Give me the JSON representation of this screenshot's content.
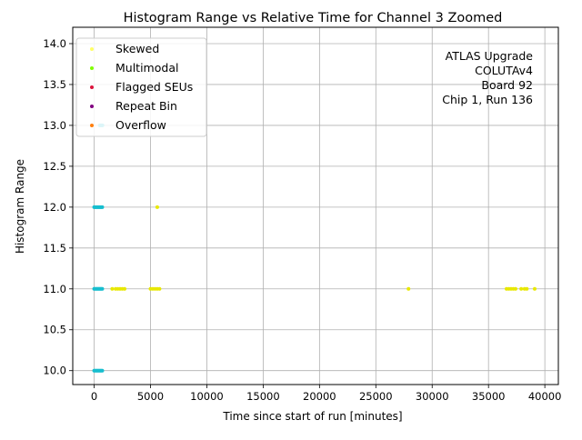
{
  "chart_data": {
    "type": "scatter",
    "title": "Histogram Range vs Relative Time for Channel 3 Zoomed",
    "xlabel": "Time since start of run [minutes]",
    "ylabel": "Histogram Range",
    "xlim": [
      -1900,
      41200
    ],
    "ylim": [
      9.83,
      14.2
    ],
    "x_ticks": [
      0,
      5000,
      10000,
      15000,
      20000,
      25000,
      30000,
      35000,
      40000
    ],
    "x_tick_labels": [
      "0",
      "5000",
      "10000",
      "15000",
      "20000",
      "25000",
      "30000",
      "35000",
      "40000"
    ],
    "y_ticks": [
      10.0,
      10.5,
      11.0,
      11.5,
      12.0,
      12.5,
      13.0,
      13.5,
      14.0
    ],
    "y_tick_labels": [
      "10.0",
      "10.5",
      "11.0",
      "11.5",
      "12.0",
      "12.5",
      "13.0",
      "13.5",
      "14.0"
    ],
    "grid": true,
    "legend_position": "top-left",
    "legend": [
      {
        "label": "Skewed",
        "color": "#ffff66"
      },
      {
        "label": "Multimodal",
        "color": "#7fff00"
      },
      {
        "label": "Flagged SEUs",
        "color": "#dc143c"
      },
      {
        "label": "Repeat Bin",
        "color": "#800080"
      },
      {
        "label": "Overflow",
        "color": "#ff7f0e"
      }
    ],
    "annotation": [
      "ATLAS Upgrade",
      "COLUTAv4",
      "Board 92",
      "Chip 1, Run 136"
    ],
    "series": [
      {
        "color": "#17becf",
        "points": [
          [
            0,
            10
          ],
          [
            80,
            10
          ],
          [
            160,
            10
          ],
          [
            240,
            10
          ],
          [
            320,
            10
          ],
          [
            400,
            10
          ],
          [
            480,
            10
          ],
          [
            560,
            10
          ],
          [
            640,
            10
          ],
          [
            720,
            10
          ],
          [
            0,
            11
          ],
          [
            80,
            11
          ],
          [
            160,
            11
          ],
          [
            240,
            11
          ],
          [
            320,
            11
          ],
          [
            400,
            11
          ],
          [
            480,
            11
          ],
          [
            560,
            11
          ],
          [
            640,
            11
          ],
          [
            720,
            11
          ],
          [
            0,
            12
          ],
          [
            80,
            12
          ],
          [
            160,
            12
          ],
          [
            240,
            12
          ],
          [
            320,
            12
          ],
          [
            400,
            12
          ],
          [
            480,
            12
          ],
          [
            560,
            12
          ],
          [
            640,
            12
          ],
          [
            720,
            12
          ],
          [
            500,
            13
          ],
          [
            580,
            13
          ],
          [
            660,
            13
          ],
          [
            740,
            13
          ]
        ]
      },
      {
        "color": "#e8e800",
        "points": [
          [
            1600,
            11
          ],
          [
            1900,
            11
          ],
          [
            2100,
            11
          ],
          [
            2300,
            11
          ],
          [
            2500,
            11
          ],
          [
            2700,
            11
          ],
          [
            5000,
            11
          ],
          [
            5200,
            11
          ],
          [
            5400,
            11
          ],
          [
            5600,
            11
          ],
          [
            5800,
            11
          ],
          [
            5600,
            12
          ],
          [
            27900,
            11
          ],
          [
            36600,
            11
          ],
          [
            36800,
            11
          ],
          [
            37000,
            11
          ],
          [
            37200,
            11
          ],
          [
            37400,
            11
          ],
          [
            37900,
            11
          ],
          [
            38200,
            11
          ],
          [
            38400,
            11
          ],
          [
            39100,
            11
          ]
        ]
      }
    ]
  }
}
